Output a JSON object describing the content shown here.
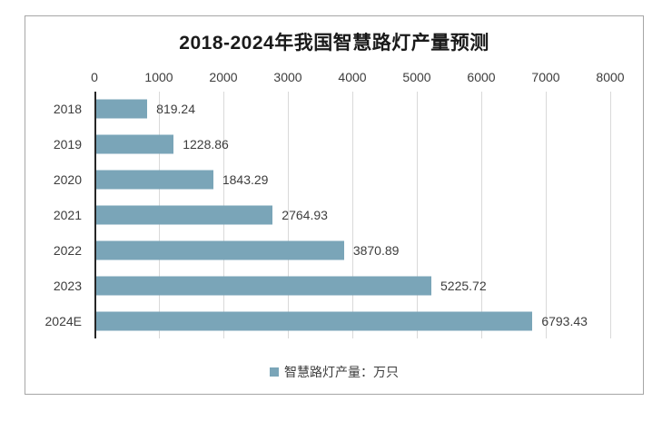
{
  "chart_data": {
    "type": "bar",
    "orientation": "horizontal",
    "title": "2018-2024年我国智慧路灯产量预测",
    "categories": [
      "2018",
      "2019",
      "2020",
      "2021",
      "2022",
      "2023",
      "2024E"
    ],
    "values": [
      819.24,
      1228.86,
      1843.29,
      2764.93,
      3870.89,
      5225.72,
      6793.43
    ],
    "value_labels": [
      "819.24",
      "1228.86",
      "1843.29",
      "2764.93",
      "3870.89",
      "5225.72",
      "6793.43"
    ],
    "xlim": [
      0,
      8000
    ],
    "x_ticks": [
      0,
      1000,
      2000,
      3000,
      4000,
      5000,
      6000,
      7000,
      8000
    ],
    "grid": true,
    "legend_position": "bottom",
    "legend": [
      {
        "label": "智慧路灯产量：万只",
        "marker": "square"
      }
    ],
    "colors": {
      "bar": "#7aa5b8",
      "gridline": "#d9d9d9",
      "axis_line": "#262626",
      "text": "#3d3d3d",
      "title": "#1a1a1a",
      "frame_border": "#a6a6a6",
      "background": "#ffffff"
    }
  }
}
